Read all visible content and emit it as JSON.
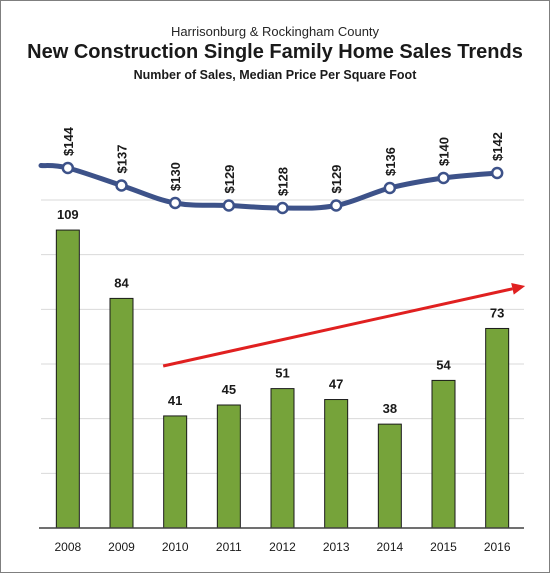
{
  "header": {
    "supertitle": "Harrisonburg & Rockingham County",
    "title": "New Construction Single Family Home Sales Trends",
    "subtitle": "Number of Sales, Median Price Per Square Foot"
  },
  "colors": {
    "bar_fill": "#76a33a",
    "bar_stroke": "#1a1a1a",
    "line": "#3d5289",
    "marker_fill": "#ffffff",
    "arrow": "#e02020",
    "gridline": "#d9d9d9"
  },
  "chart_data": {
    "type": "bar",
    "categories": [
      "2008",
      "2009",
      "2010",
      "2011",
      "2012",
      "2013",
      "2014",
      "2015",
      "2016"
    ],
    "series": [
      {
        "type": "bar",
        "values": [
          109,
          84,
          41,
          45,
          51,
          47,
          38,
          54,
          73
        ],
        "labels": [
          "109",
          "84",
          "41",
          "45",
          "51",
          "47",
          "38",
          "54",
          "73"
        ]
      },
      {
        "type": "line",
        "values": [
          144,
          137,
          130,
          129,
          128,
          129,
          136,
          140,
          142
        ],
        "labels": [
          "$144",
          "$137",
          "$130",
          "$129",
          "$128",
          "$129",
          "$136",
          "$140",
          "$142"
        ],
        "extends_left_to": 145
      }
    ],
    "ylim": [
      0,
      120
    ],
    "grid": true,
    "legend": "none",
    "annotations": [
      {
        "type": "arrow",
        "from": "2010",
        "to": "2016",
        "direction": "up",
        "color": "#e02020"
      }
    ]
  }
}
